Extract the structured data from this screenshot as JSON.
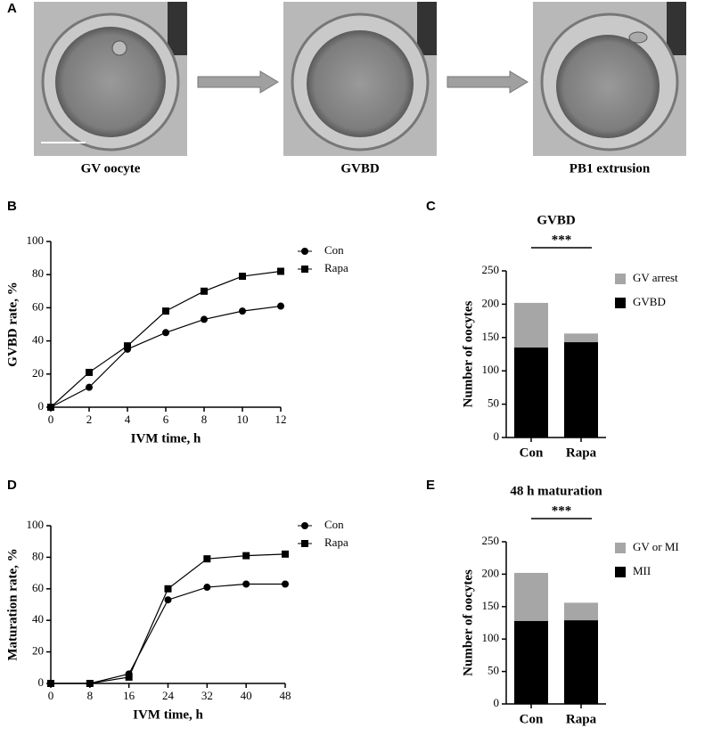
{
  "panel_labels": [
    "A",
    "B",
    "C",
    "D",
    "E"
  ],
  "stages": [
    "GV oocyte",
    "GVBD",
    "PB1 extrusion"
  ],
  "chart_data": [
    {
      "type": "line",
      "x_label": "IVM time, h",
      "y_label": "GVBD rate, %",
      "x": [
        0,
        2,
        4,
        6,
        8,
        10,
        12
      ],
      "xlim": [
        0,
        12
      ],
      "xticks": [
        0,
        2,
        4,
        6,
        8,
        10,
        12
      ],
      "ylim": [
        0,
        100
      ],
      "yticks": [
        0,
        20,
        40,
        60,
        80,
        100
      ],
      "series": [
        {
          "name": "Con",
          "marker": "circle",
          "color": "#000000",
          "values": [
            0,
            12,
            35,
            45,
            53,
            58,
            61
          ]
        },
        {
          "name": "Rapa",
          "marker": "square",
          "color": "#000000",
          "values": [
            0,
            21,
            37,
            58,
            70,
            79,
            82
          ]
        }
      ]
    },
    {
      "type": "bar",
      "stacked": true,
      "title": "GVBD",
      "y_label": "Number of oocytes",
      "annotation": "***",
      "categories": [
        "Con",
        "Rapa"
      ],
      "ylim": [
        0,
        250
      ],
      "yticks": [
        0,
        50,
        100,
        150,
        200,
        250
      ],
      "series": [
        {
          "name": "GVBD",
          "color": "#000000",
          "values": [
            135,
            143
          ]
        },
        {
          "name": "GV arrest",
          "color": "#a6a6a6",
          "values": [
            67,
            13
          ]
        }
      ]
    },
    {
      "type": "line",
      "x_label": "IVM time, h",
      "y_label": "Maturation rate, %",
      "x": [
        0,
        8,
        16,
        24,
        32,
        40,
        48
      ],
      "xlim": [
        0,
        48
      ],
      "xticks": [
        0,
        8,
        16,
        24,
        32,
        40,
        48
      ],
      "ylim": [
        0,
        100
      ],
      "yticks": [
        0,
        20,
        40,
        60,
        80,
        100
      ],
      "series": [
        {
          "name": "Con",
          "marker": "circle",
          "color": "#000000",
          "values": [
            0,
            0,
            6,
            53,
            61,
            63,
            63
          ]
        },
        {
          "name": "Rapa",
          "marker": "square",
          "color": "#000000",
          "values": [
            0,
            0,
            4,
            60,
            79,
            81,
            82
          ]
        }
      ]
    },
    {
      "type": "bar",
      "stacked": true,
      "title": "48 h maturation",
      "y_label": "Number of oocytes",
      "annotation": "***",
      "categories": [
        "Con",
        "Rapa"
      ],
      "ylim": [
        0,
        250
      ],
      "yticks": [
        0,
        50,
        100,
        150,
        200,
        250
      ],
      "series": [
        {
          "name": "MII",
          "color": "#000000",
          "values": [
            128,
            129
          ]
        },
        {
          "name": "GV or MI",
          "color": "#a6a6a6",
          "values": [
            74,
            27
          ]
        }
      ]
    }
  ]
}
